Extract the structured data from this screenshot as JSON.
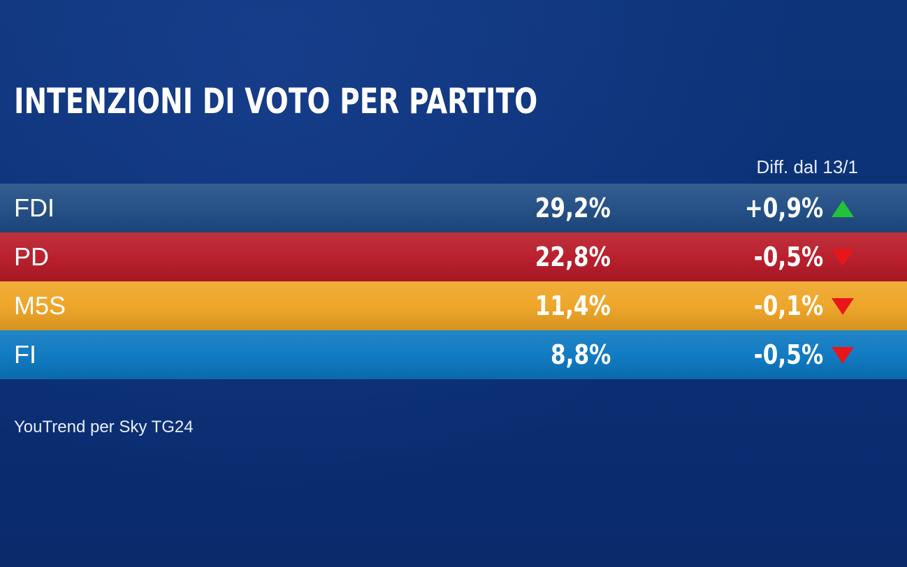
{
  "chart_data": {
    "type": "table",
    "title": "INTENZIONI DI VOTO PER PARTITO",
    "diff_label": "Diff. dal 13/1",
    "source": "YouTrend per Sky TG24",
    "rows": [
      {
        "party": "FDI",
        "value": "29,2%",
        "delta": "+0,9%",
        "trend": "up",
        "color": "#1f4c84",
        "arrow_color": "#22c23a"
      },
      {
        "party": "PD",
        "value": "22,8%",
        "delta": "-0,5%",
        "trend": "down",
        "color": "#b81a28",
        "arrow_color": "#e8161b"
      },
      {
        "party": "M5S",
        "value": "11,4%",
        "delta": "-0,1%",
        "trend": "down",
        "color": "#eea424",
        "arrow_color": "#e8161b"
      },
      {
        "party": "FI",
        "value": "8,8%",
        "delta": "-0,5%",
        "trend": "down",
        "color": "#0a77c0",
        "arrow_color": "#e8161b"
      }
    ]
  }
}
